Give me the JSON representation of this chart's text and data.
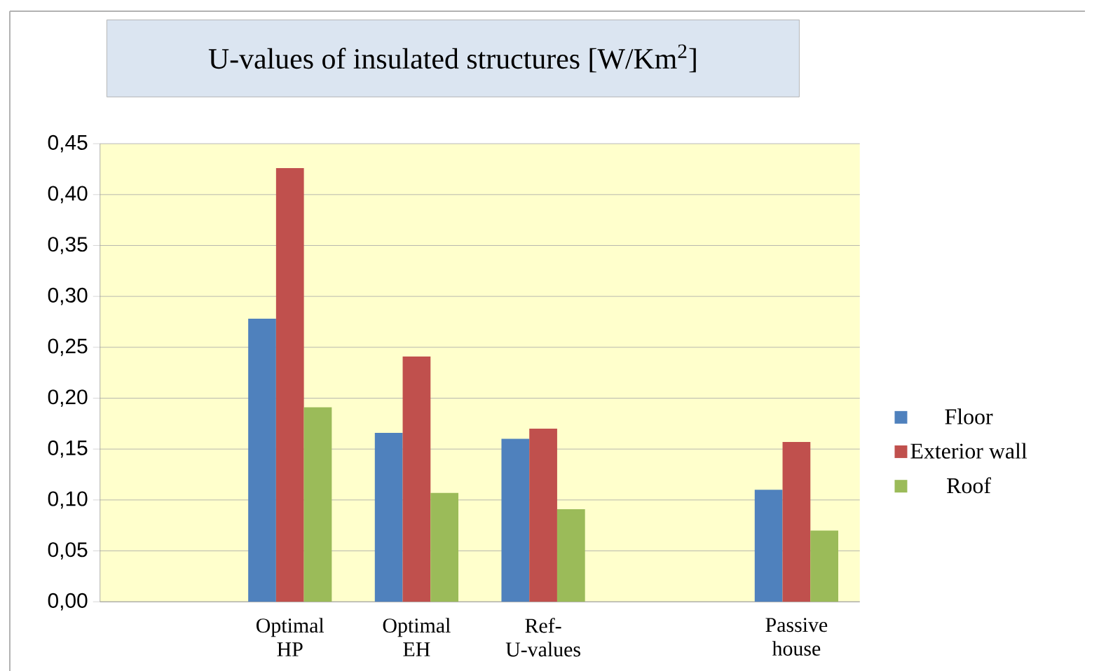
{
  "chart_data": {
    "type": "bar",
    "title": "U-values of insulated structures [W/Km$^{2}$]",
    "categories": [
      null,
      "Optimal HP",
      "Optimal EH",
      "Ref- U-values",
      null,
      "Passive house"
    ],
    "series": [
      {
        "name": "Floor",
        "color": "#4f81bd",
        "values": [
          null,
          0.278,
          0.166,
          0.16,
          null,
          0.11
        ]
      },
      {
        "name": "Exterior wall",
        "color": "#c0504d",
        "values": [
          null,
          0.426,
          0.241,
          0.17,
          null,
          0.157
        ]
      },
      {
        "name": "Roof",
        "color": "#9bbb59",
        "values": [
          null,
          0.191,
          0.107,
          0.091,
          null,
          0.07
        ]
      }
    ],
    "ylim": [
      0,
      0.45
    ],
    "yticks": [
      {
        "value": 0,
        "label": "0,00"
      },
      {
        "value": 0.05,
        "label": "0,05"
      },
      {
        "value": 0.1,
        "label": "0,10"
      },
      {
        "value": 0.15,
        "label": "0,15"
      },
      {
        "value": 0.2,
        "label": "0,20"
      },
      {
        "value": 0.25,
        "label": "0,25"
      },
      {
        "value": 0.3,
        "label": "0,30"
      },
      {
        "value": 0.35,
        "label": "0,35"
      },
      {
        "value": 0.4,
        "label": "0,40"
      },
      {
        "value": 0.45,
        "label": "0,45"
      }
    ],
    "grid": "y",
    "legend": "right"
  }
}
